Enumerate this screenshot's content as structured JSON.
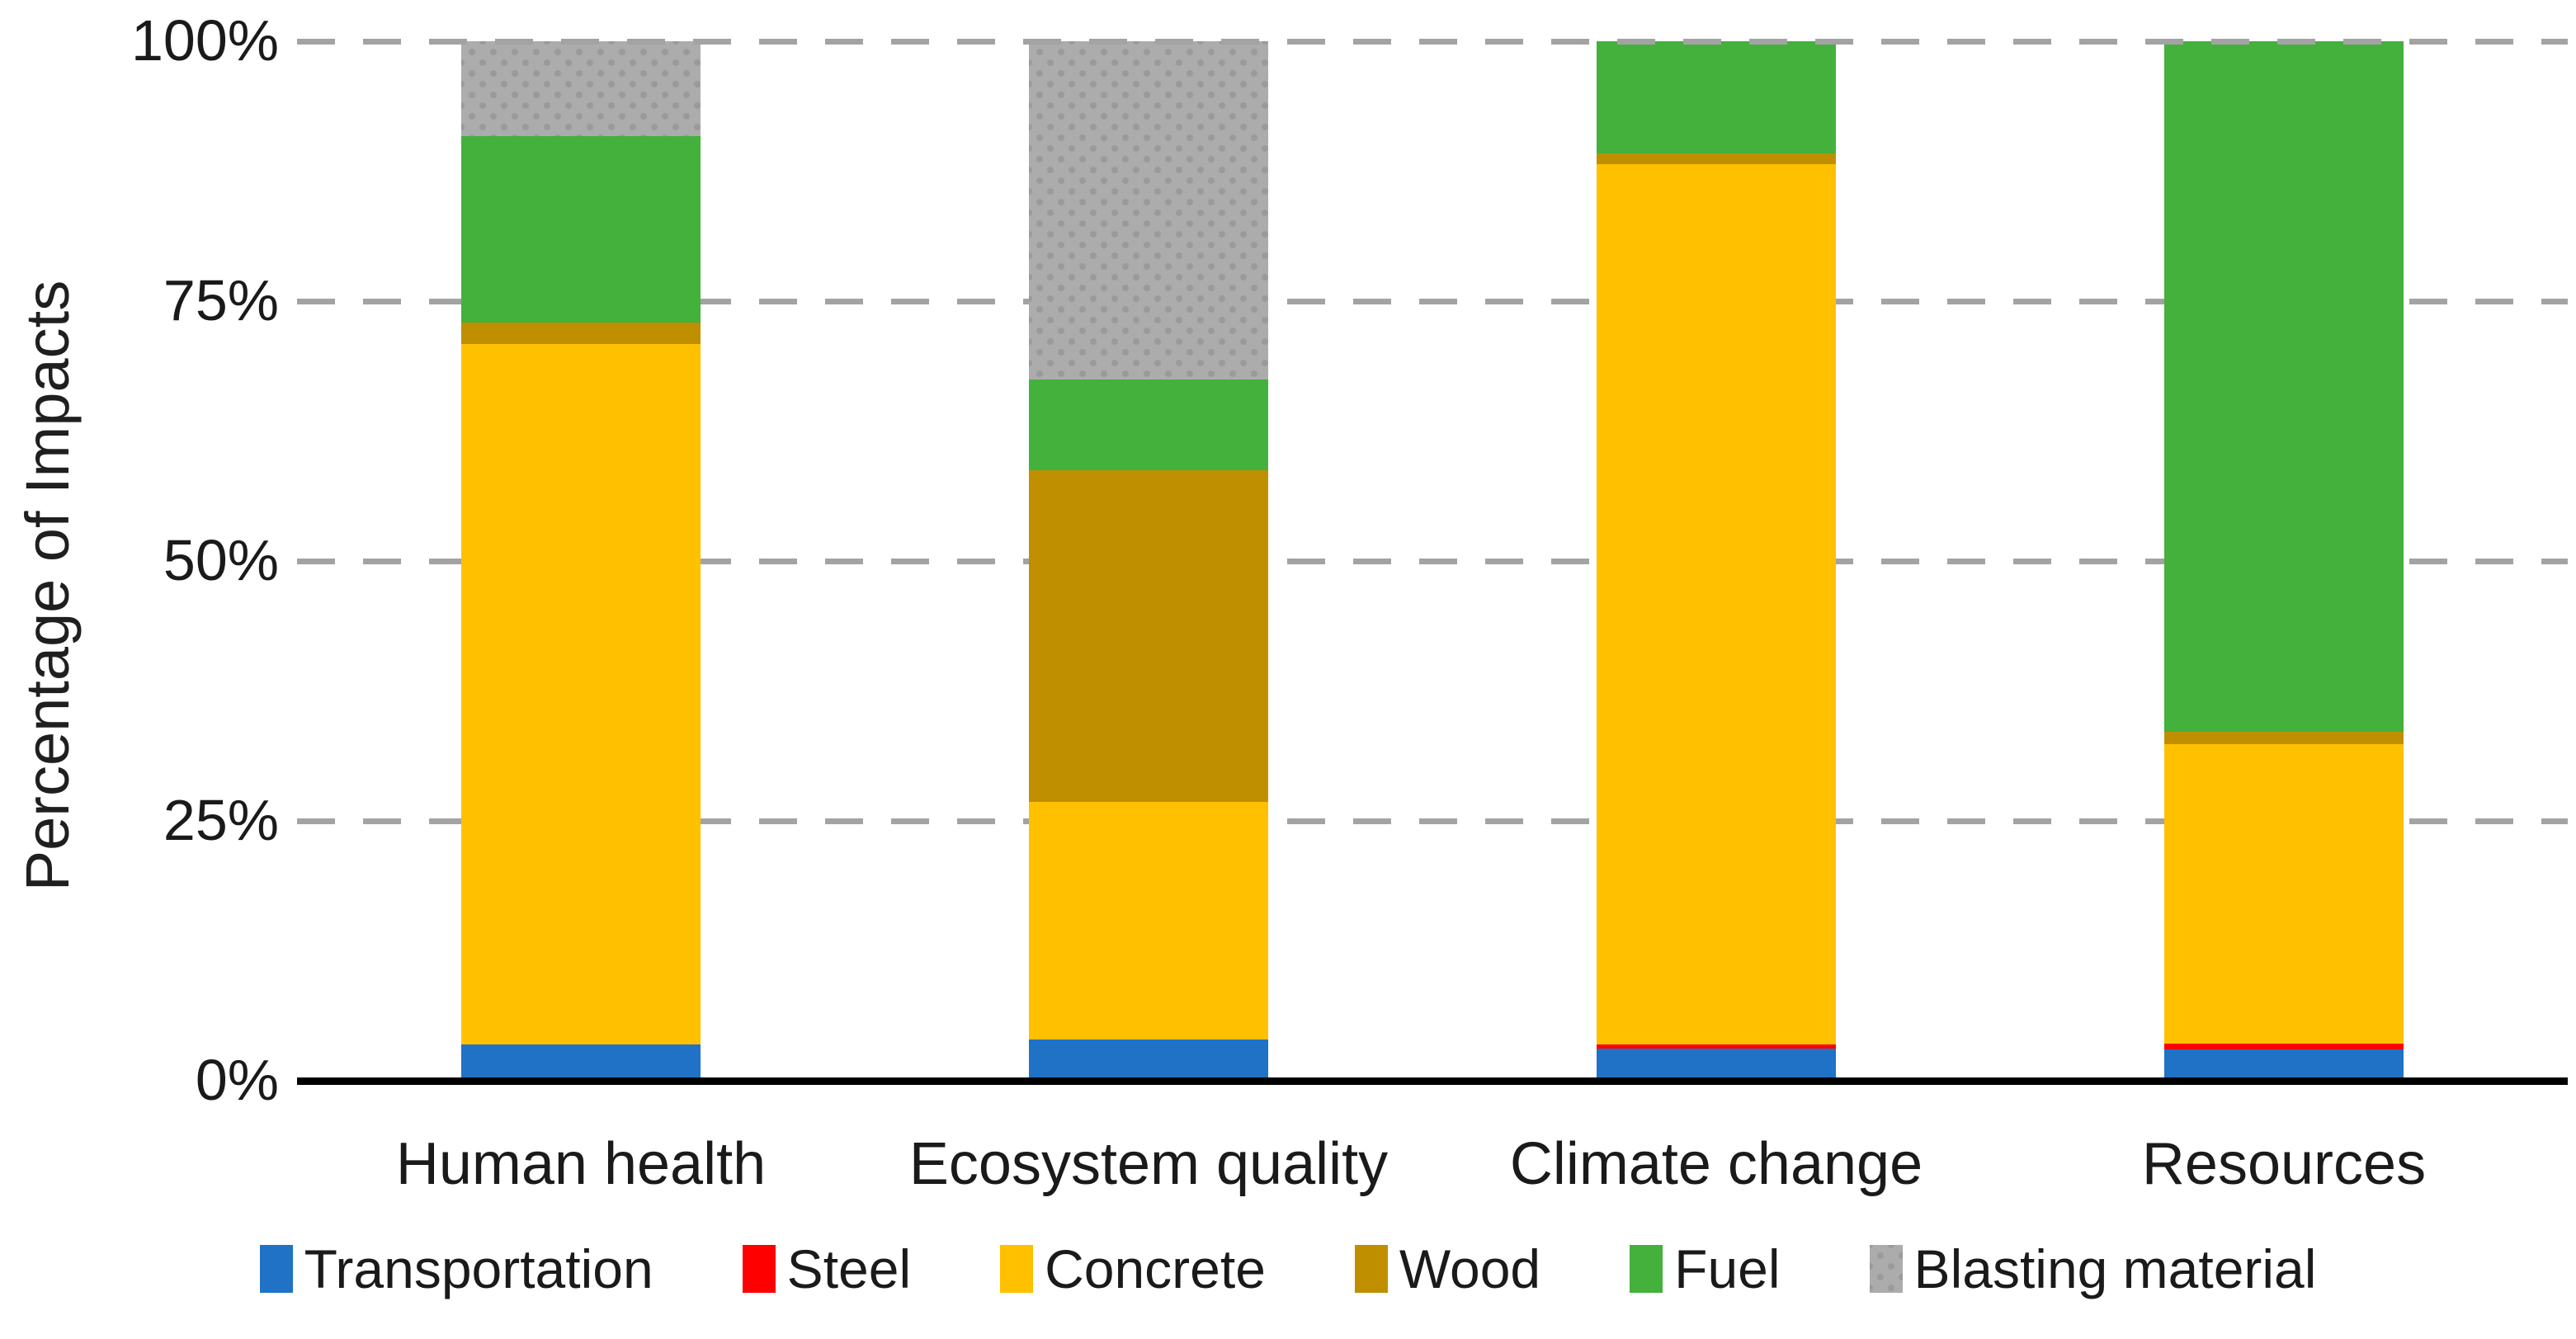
{
  "chart_data": {
    "type": "bar",
    "stacked": true,
    "title": "",
    "xlabel": "",
    "ylabel": "Percentage of Impacts",
    "ylim": [
      0,
      100
    ],
    "grid": "dashed-horizontal",
    "legend_position": "bottom",
    "yticks": [
      {
        "value": 0,
        "label": "0%"
      },
      {
        "value": 25,
        "label": "25%"
      },
      {
        "value": 50,
        "label": "50%"
      },
      {
        "value": 75,
        "label": "75%"
      },
      {
        "value": 100,
        "label": "100%"
      }
    ],
    "categories": [
      "Human health",
      "Ecosystem quality",
      "Climate change",
      "Resources"
    ],
    "series": [
      {
        "name": "Transportation",
        "color": "#1f72c6",
        "pattern": "solid",
        "values": [
          3.5,
          4.0,
          3.1,
          3.0
        ]
      },
      {
        "name": "Steel",
        "color": "#fe0000",
        "pattern": "solid",
        "values": [
          0,
          0,
          0.4,
          0.6
        ]
      },
      {
        "name": "Concrete",
        "color": "#ffc000",
        "pattern": "solid",
        "values": [
          67.4,
          22.8,
          84.7,
          28.8
        ]
      },
      {
        "name": "Wood",
        "color": "#bf8f00",
        "pattern": "solid",
        "values": [
          2.0,
          31.9,
          1.0,
          1.2
        ]
      },
      {
        "name": "Fuel",
        "color": "#43b13c",
        "pattern": "solid",
        "values": [
          18.0,
          8.8,
          10.8,
          66.4
        ]
      },
      {
        "name": "Blasting material",
        "color": "#acacac",
        "pattern": "dots",
        "values": [
          9.1,
          32.5,
          0,
          0
        ]
      }
    ]
  },
  "style_colors": {
    "axis": "#000000",
    "gridline": "#a3a3a3",
    "text": "#1a1a1a",
    "background": "#ffffff"
  }
}
